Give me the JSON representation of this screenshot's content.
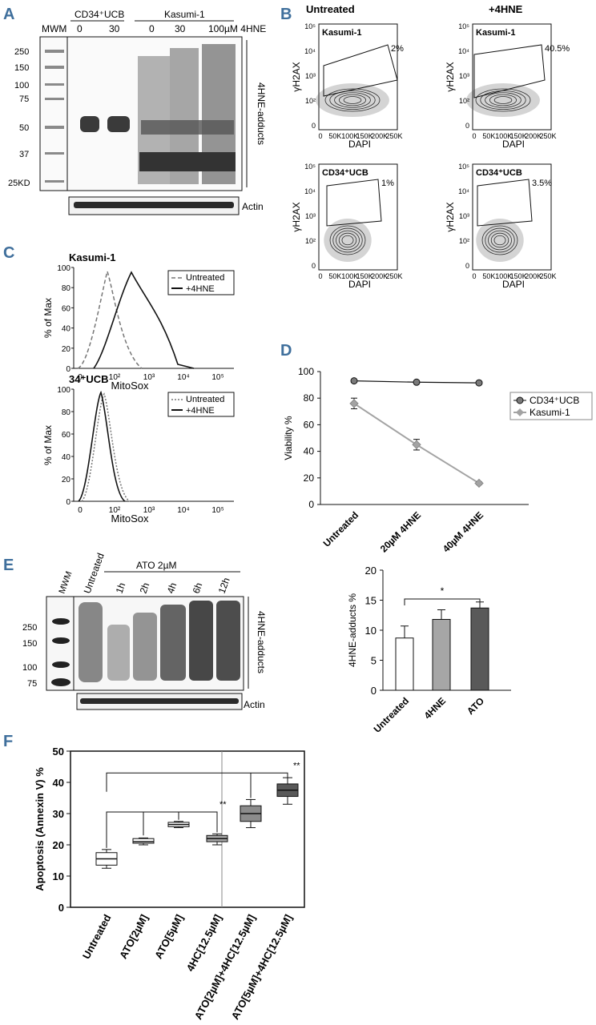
{
  "panels": {
    "a": "A",
    "b": "B",
    "c": "C",
    "d": "D",
    "e": "E",
    "f": "F"
  },
  "panel_a": {
    "mwm": "MWM",
    "groups": [
      "CD34⁺UCB",
      "Kasumi-1"
    ],
    "lanes": [
      "0",
      "30",
      "0",
      "30",
      "100µM 4HNE"
    ],
    "markers": [
      "250",
      "150",
      "100",
      "75",
      "50",
      "37",
      "25KD"
    ],
    "side_label": "4HNE-adducts",
    "actin": "Actin"
  },
  "panel_b": {
    "col_titles": [
      "Untreated",
      "+4HNE"
    ],
    "xlabel": "DAPI",
    "ylabel": "γH2AX",
    "xticks": [
      "0",
      "50K",
      "100K",
      "150K",
      "200K",
      "250K"
    ],
    "yticks": [
      "10⁵",
      "10⁴",
      "10³",
      "10²",
      "0"
    ],
    "plots": [
      {
        "sample": "Kasumi-1",
        "gate": "2%"
      },
      {
        "sample": "Kasumi-1",
        "gate": "40.5%"
      },
      {
        "sample": "CD34⁺UCB",
        "gate": "1%"
      },
      {
        "sample": "CD34⁺UCB",
        "gate": "3.5%"
      }
    ]
  },
  "panel_c": {
    "plots": [
      {
        "title": "Kasumi-1",
        "legend": [
          "Untreated",
          "+4HNE"
        ]
      },
      {
        "title": "34⁺UCB",
        "legend": [
          "Untreated",
          "+4HNE"
        ]
      }
    ],
    "ylabel": "% of Max",
    "xlabel": "MitoSox",
    "yticks": [
      "100",
      "80",
      "60",
      "40",
      "20",
      "0"
    ],
    "xticks": [
      "0",
      "10²",
      "10³",
      "10⁴",
      "10⁵"
    ]
  },
  "panel_e": {
    "lanes": [
      "MWM",
      "Untreated",
      "1h",
      "2h",
      "4h",
      "6h",
      "12h"
    ],
    "treatment": "ATO 2µM",
    "markers": [
      "250",
      "150",
      "100",
      "75"
    ],
    "side_label": "4HNE-adducts",
    "actin": "Actin"
  },
  "chart_data": [
    {
      "panel": "D",
      "type": "line",
      "title": "",
      "xlabel": "",
      "ylabel": "Viability %",
      "categories": [
        "Untreated",
        "20µM 4HNE",
        "40µM 4HNE"
      ],
      "ylim": [
        0,
        100
      ],
      "yticks": [
        "100",
        "80",
        "60",
        "40",
        "20",
        "0"
      ],
      "series": [
        {
          "name": "CD34⁺UCB",
          "values": [
            93,
            92,
            91.5
          ],
          "errors": [
            1,
            1,
            1
          ],
          "color": "#7a7a7a"
        },
        {
          "name": "Kasumi-1",
          "values": [
            76,
            45,
            16
          ],
          "errors": [
            4,
            4,
            1
          ],
          "color": "#a3a3a3"
        }
      ]
    },
    {
      "panel": "E",
      "type": "bar",
      "title": "",
      "xlabel": "",
      "ylabel": "4HNE-adducts %",
      "categories": [
        "Untreated",
        "4HNE",
        "ATO"
      ],
      "values": [
        8.7,
        11.8,
        13.7
      ],
      "errors": [
        2,
        1.6,
        1
      ],
      "colors": [
        "#ffffff",
        "#a6a6a6",
        "#595959"
      ],
      "ylim": [
        0,
        20
      ],
      "yticks": [
        "20",
        "15",
        "10",
        "5",
        "0"
      ],
      "significance": "*"
    },
    {
      "panel": "F",
      "type": "box",
      "title": "",
      "xlabel": "",
      "ylabel": "Apoptosis (Annexin V) %",
      "categories": [
        "Untreated",
        "ATO[2µM]",
        "ATO[5µM]",
        "4HC[12.5µM]",
        "ATO[2µM]+4HC[12.5µM]",
        "ATO[5µM]+4HC[12.5µM]"
      ],
      "boxes": [
        {
          "min": 12.5,
          "q1": 13.5,
          "median": 15.5,
          "q3": 17.5,
          "max": 18.5,
          "color": "#ffffff"
        },
        {
          "min": 20,
          "q1": 20.5,
          "median": 21,
          "q3": 22,
          "max": 22.2,
          "color": "#ffffff"
        },
        {
          "min": 25.5,
          "q1": 25.8,
          "median": 26.5,
          "q3": 27.2,
          "max": 27.5,
          "color": "#ffffff"
        },
        {
          "min": 20,
          "q1": 21,
          "median": 22,
          "q3": 23,
          "max": 23.5,
          "color": "#a6a6a6"
        },
        {
          "min": 25.5,
          "q1": 27.5,
          "median": 30,
          "q3": 32.5,
          "max": 34.5,
          "color": "#8c8c8c"
        },
        {
          "min": 33,
          "q1": 35.5,
          "median": 37.5,
          "q3": 39.5,
          "max": 41.5,
          "color": "#595959"
        }
      ],
      "ylim": [
        0,
        50
      ],
      "yticks": [
        "50",
        "40",
        "30",
        "20",
        "10",
        "0"
      ],
      "significance": [
        "**",
        "**"
      ]
    }
  ]
}
